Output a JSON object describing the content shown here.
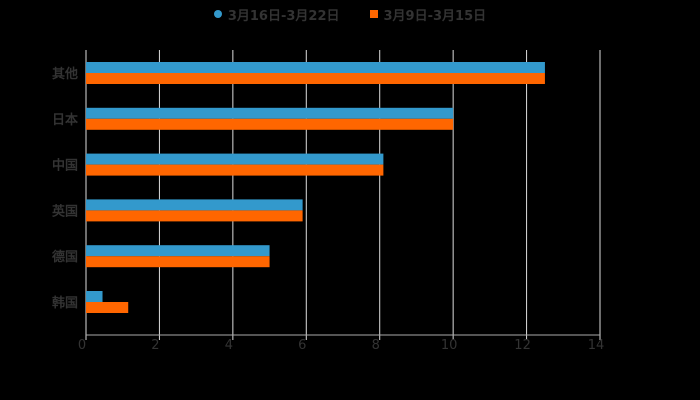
{
  "legend": [
    {
      "label": "3月16日-3月22日",
      "color": "#3399cc",
      "shape": "circle"
    },
    {
      "label": "3月9日-3月15日",
      "color": "#ff6600",
      "shape": "square"
    }
  ],
  "chart_data": {
    "type": "bar",
    "orientation": "horizontal",
    "title": "",
    "xlabel": "",
    "ylabel": "",
    "categories": [
      "其他",
      "日本",
      "中国",
      "英国",
      "德国",
      "韩国"
    ],
    "series": [
      {
        "name": "3月16日-3月22日",
        "color": "#3399cc",
        "values": [
          12.5,
          10.0,
          8.1,
          5.9,
          5.0,
          0.45
        ]
      },
      {
        "name": "3月9日-3月15日",
        "color": "#ff6600",
        "values": [
          12.5,
          10.0,
          8.1,
          5.9,
          5.0,
          1.15
        ]
      }
    ],
    "xlim": [
      0,
      14
    ],
    "xticks": [
      0,
      2,
      4,
      6,
      8,
      10,
      12,
      14
    ],
    "grid": true,
    "legend_position": "top"
  }
}
